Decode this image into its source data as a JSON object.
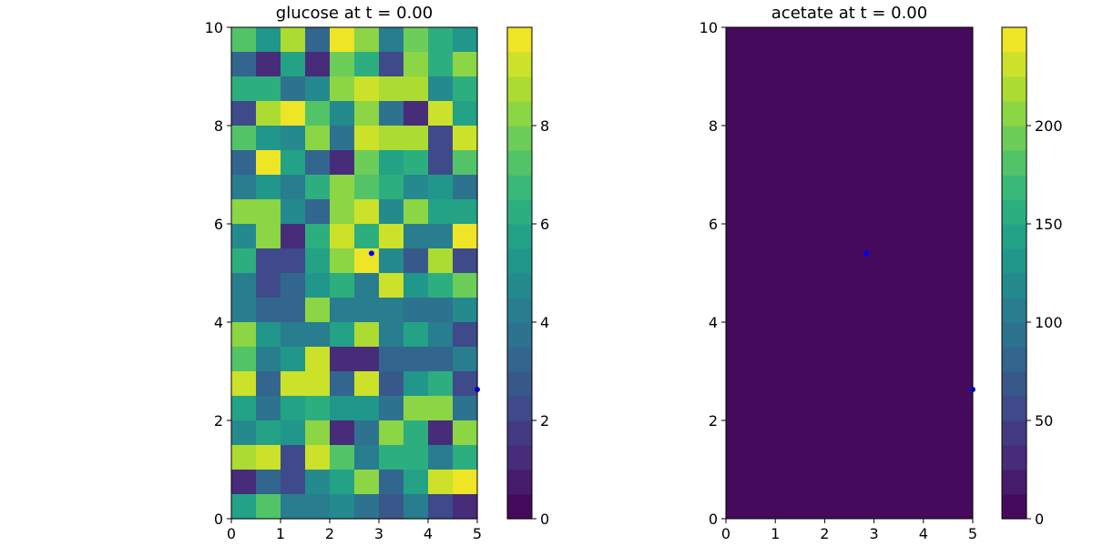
{
  "figure": {
    "colormap": [
      "#440154",
      "#482878",
      "#3e4989",
      "#31688e",
      "#26828e",
      "#1f9e89",
      "#35b779",
      "#6ece58",
      "#b5de2b",
      "#fde725"
    ],
    "cell_border_color": "#000000",
    "marker_color": "#0000ff"
  },
  "chart_data": [
    {
      "type": "heatmap",
      "title": "glucose at t = 0.00",
      "xlim": [
        0,
        5
      ],
      "ylim": [
        0,
        10
      ],
      "xticks": [
        0,
        1,
        2,
        3,
        4,
        5
      ],
      "yticks": [
        0,
        2,
        4,
        6,
        8,
        10
      ],
      "xlabel": "",
      "ylabel": "",
      "nx": 10,
      "ny": 20,
      "values_top_to_bottom": [
        [
          7.0,
          5.0,
          8.6,
          3.0,
          9.8,
          8.0,
          4.0,
          7.6,
          6.0,
          5.0
        ],
        [
          3.0,
          1.0,
          5.6,
          1.0,
          7.6,
          6.4,
          2.0,
          8.4,
          6.4,
          8.4
        ],
        [
          6.0,
          6.4,
          3.6,
          4.6,
          8.0,
          9.0,
          8.6,
          8.6,
          4.6,
          6.4
        ],
        [
          2.0,
          8.6,
          9.6,
          7.0,
          4.6,
          8.4,
          3.6,
          1.0,
          9.2,
          5.6
        ],
        [
          7.4,
          5.0,
          4.6,
          8.0,
          3.6,
          9.0,
          8.6,
          8.6,
          2.0,
          9.0
        ],
        [
          3.0,
          9.6,
          5.6,
          3.0,
          1.0,
          7.6,
          5.6,
          6.4,
          2.0,
          7.4
        ],
        [
          4.0,
          5.0,
          4.0,
          6.4,
          8.4,
          7.0,
          6.4,
          4.6,
          5.0,
          3.6
        ],
        [
          8.4,
          8.4,
          4.6,
          3.0,
          8.0,
          9.4,
          4.6,
          8.0,
          5.6,
          5.6
        ],
        [
          4.6,
          8.4,
          1.0,
          6.4,
          9.2,
          6.0,
          9.0,
          4.0,
          4.0,
          9.8
        ],
        [
          6.0,
          2.0,
          2.0,
          5.6,
          8.4,
          9.8,
          4.6,
          2.6,
          8.8,
          2.0
        ],
        [
          4.0,
          2.0,
          3.0,
          5.0,
          6.4,
          4.0,
          9.0,
          5.0,
          6.0,
          7.6
        ],
        [
          4.0,
          3.0,
          3.0,
          8.4,
          4.0,
          4.0,
          4.0,
          3.6,
          3.6,
          4.6
        ],
        [
          8.4,
          5.0,
          4.0,
          4.0,
          5.6,
          8.6,
          4.0,
          5.6,
          4.0,
          2.0
        ],
        [
          7.4,
          4.0,
          5.0,
          9.4,
          1.0,
          1.0,
          3.0,
          3.0,
          3.0,
          4.0
        ],
        [
          9.0,
          3.0,
          9.2,
          9.4,
          3.0,
          9.4,
          2.6,
          5.0,
          6.4,
          2.0
        ],
        [
          5.6,
          3.6,
          5.6,
          6.4,
          5.0,
          5.0,
          3.6,
          8.4,
          8.4,
          3.6
        ],
        [
          4.6,
          5.6,
          5.0,
          8.0,
          1.0,
          3.6,
          8.0,
          6.4,
          1.4,
          8.4
        ],
        [
          8.8,
          9.4,
          2.0,
          9.0,
          7.0,
          4.0,
          6.4,
          6.0,
          4.0,
          6.4
        ],
        [
          1.0,
          3.0,
          2.0,
          4.6,
          5.6,
          8.0,
          3.0,
          5.6,
          9.0,
          9.6
        ],
        [
          5.6,
          7.0,
          4.0,
          4.0,
          4.6,
          3.6,
          2.6,
          4.0,
          2.0,
          1.4
        ]
      ],
      "colorbar": {
        "min": 0,
        "max": 10,
        "levels": 20,
        "ticks": [
          0,
          2,
          4,
          6,
          8
        ]
      },
      "markers": [
        {
          "x": 2.85,
          "y": 5.4
        },
        {
          "x": 5.0,
          "y": 2.63
        }
      ]
    },
    {
      "type": "heatmap",
      "title": "acetate at t = 0.00",
      "xlim": [
        0,
        5
      ],
      "ylim": [
        0,
        10
      ],
      "xticks": [
        0,
        1,
        2,
        3,
        4,
        5
      ],
      "yticks": [
        0,
        2,
        4,
        6,
        8,
        10
      ],
      "xlabel": "",
      "ylabel": "",
      "uniform_value": 0,
      "colorbar": {
        "min": 0,
        "max": 250,
        "levels": 20,
        "ticks": [
          0,
          50,
          100,
          150,
          200
        ]
      },
      "markers": [
        {
          "x": 2.85,
          "y": 5.4
        },
        {
          "x": 5.0,
          "y": 2.63
        }
      ]
    }
  ]
}
